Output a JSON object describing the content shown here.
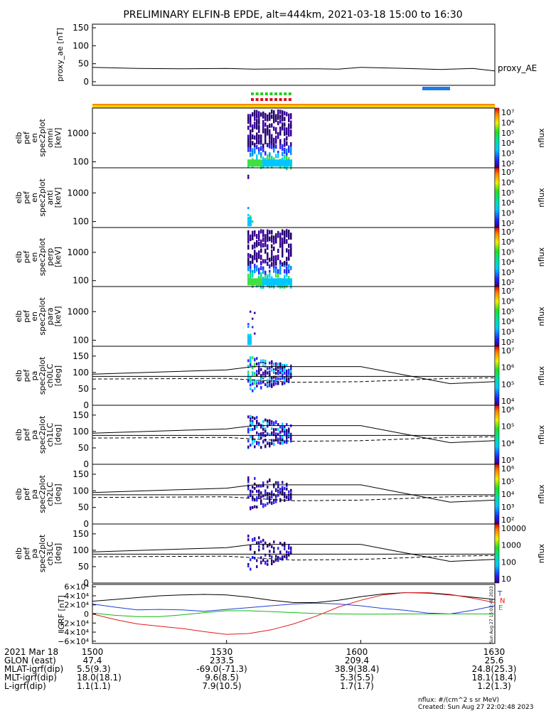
{
  "title": "PRELIMINARY ELFIN-B EPDE, alt=444km, 2021-03-18 15:00 to 16:30",
  "colors": {
    "line": "#000000",
    "bar_blue": "#1e7be6",
    "bar_yellow": "#f5d100",
    "bar_orange": "#f58a00",
    "dot_green": "#22cc22",
    "dot_red": "#dd1111",
    "bx": "#e41a1c",
    "by": "#1f3fd6",
    "bz": "#11bb11",
    "btot": "#000000"
  },
  "chart_data": [
    {
      "type": "line",
      "name": "proxy_ae",
      "ylabel": "proxy_ae [nT]",
      "legend": "proxy_AE",
      "ylim": [
        -10,
        160
      ],
      "yticks": [
        "150",
        "100",
        "50",
        "0"
      ],
      "x": [
        1500,
        1510,
        1520,
        1530,
        1536,
        1550,
        1555,
        1600,
        1610,
        1618,
        1625,
        1630
      ],
      "values": [
        40,
        37,
        36,
        37,
        35,
        36,
        35,
        40,
        37,
        34,
        37,
        30
      ]
    },
    {
      "type": "heatmap",
      "name": "en_spec2plot_omni",
      "ylabel": "elb pef en spec2plot omni [keV]",
      "yticks": [
        "1000",
        "100"
      ],
      "colorbar_label": "nflux",
      "colorbar_ticks": [
        "10⁷",
        "10⁶",
        "10⁵",
        "10⁴",
        "10³",
        "10²"
      ]
    },
    {
      "type": "heatmap",
      "name": "en_spec2plot_anti",
      "ylabel": "elb pef en spec2plot anti [keV]",
      "yticks": [
        "1000",
        "100"
      ],
      "colorbar_label": "nflux",
      "colorbar_ticks": [
        "10⁷",
        "10⁶",
        "10⁵",
        "10⁴",
        "10³",
        "10²"
      ]
    },
    {
      "type": "heatmap",
      "name": "en_spec2plot_perp",
      "ylabel": "elb pef en spec2plot perp [keV]",
      "yticks": [
        "1000",
        "100"
      ],
      "colorbar_label": "nflux",
      "colorbar_ticks": [
        "10⁷",
        "10⁶",
        "10⁵",
        "10⁴",
        "10³",
        "10²"
      ]
    },
    {
      "type": "heatmap",
      "name": "en_spec2plot_para",
      "ylabel": "elb pef en spec2plot para [keV]",
      "yticks": [
        "1000",
        "100"
      ],
      "colorbar_label": "nflux",
      "colorbar_ticks": [
        "10⁷",
        "10⁶",
        "10⁵",
        "10⁴",
        "10³",
        "10²"
      ]
    },
    {
      "type": "heatmap",
      "name": "pa_spec2plot_ch0LC",
      "ylabel": "elb pef pa spec2plot ch0LC [deg]",
      "yticks": [
        "150",
        "100",
        "50",
        "0"
      ],
      "ylim": [
        0,
        180
      ],
      "colorbar_label": "nflux",
      "colorbar_ticks": [
        "10⁷",
        "10⁶",
        "10⁵",
        "10⁴"
      ]
    },
    {
      "type": "heatmap",
      "name": "pa_spec2plot_ch1LC",
      "ylabel": "elb pef pa spec2plot ch1LC [deg]",
      "yticks": [
        "150",
        "100",
        "50",
        "0"
      ],
      "ylim": [
        0,
        180
      ],
      "colorbar_label": "nflux",
      "colorbar_ticks": [
        "10⁶",
        "10⁵",
        "10⁴",
        "10³"
      ]
    },
    {
      "type": "heatmap",
      "name": "pa_spec2plot_ch2LC",
      "ylabel": "elb pef pa spec2plot ch2LC [deg]",
      "yticks": [
        "150",
        "100",
        "50",
        "0"
      ],
      "ylim": [
        0,
        180
      ],
      "colorbar_label": "nflux",
      "colorbar_ticks": [
        "10⁶",
        "10⁵",
        "10⁴",
        "10³",
        "10²"
      ]
    },
    {
      "type": "heatmap",
      "name": "pa_spec2plot_ch3LC",
      "ylabel": "elb pef pa spec2plot ch3LC [deg]",
      "yticks": [
        "150",
        "100",
        "50",
        "0"
      ],
      "ylim": [
        0,
        180
      ],
      "colorbar_label": "nflux",
      "colorbar_ticks": [
        "10000",
        "1000",
        "100",
        "10"
      ]
    },
    {
      "type": "line",
      "name": "igrf",
      "ylabel": "IGRF [nT]",
      "ylim": [
        -65000.0,
        65000.0
      ],
      "yticks": [
        "6×10⁴",
        "4×10⁴",
        "2×10⁴",
        "0",
        "−2×10⁴",
        "−4×10⁴",
        "−6×10⁴"
      ],
      "x": [
        1500,
        1505,
        1510,
        1515,
        1520,
        1525,
        1530,
        1535,
        1540,
        1545,
        1550,
        1555,
        1600,
        1605,
        1610,
        1615,
        1620,
        1625,
        1630
      ],
      "series": [
        {
          "name": "B_tot",
          "values": [
            28000,
            32000,
            36000,
            40000,
            42000,
            43000,
            42000,
            37000,
            30000,
            25000,
            25000,
            30000,
            38000,
            44000,
            47000,
            46000,
            42000,
            37000,
            32000
          ]
        },
        {
          "name": "B_x",
          "values": [
            0,
            -12000,
            -22000,
            -27000,
            -32000,
            -39000,
            -45000,
            -43000,
            -35000,
            -22000,
            -5000,
            15000,
            30000,
            42000,
            47000,
            47000,
            43000,
            35000,
            25000
          ]
        },
        {
          "name": "B_y",
          "values": [
            22000,
            15000,
            9000,
            10000,
            9000,
            6000,
            10000,
            14000,
            18000,
            22000,
            24000,
            22000,
            18000,
            12000,
            8000,
            2000,
            0,
            8000,
            18000
          ]
        },
        {
          "name": "B_z",
          "values": [
            2000,
            -3000,
            -6000,
            -6000,
            -2000,
            3000,
            7000,
            7000,
            5000,
            3000,
            1000,
            0,
            -500,
            -500,
            0,
            0,
            0,
            0,
            0
          ]
        }
      ],
      "legend": [
        "T",
        "N",
        "E"
      ]
    }
  ],
  "xaxis": {
    "ticks": [
      "1500",
      "1530",
      "1600",
      "1630"
    ]
  },
  "footer": {
    "row_labels": [
      "2021 Mar 18",
      "GLON (east)",
      "MLAT-igrf(dip)",
      "MLT-igrf(dip)",
      "L-igrf(dip)"
    ],
    "columns": [
      {
        "time": "1500",
        "glon": "47.4",
        "mlat": "5.5(9.3)",
        "mlt": "18.0(18.1)",
        "l": "1.1(1.1)"
      },
      {
        "time": "1530",
        "glon": "233.5",
        "mlat": "-69.0(-71.3)",
        "mlt": "9.6(8.5)",
        "l": "7.9(10.5)"
      },
      {
        "time": "1600",
        "glon": "209.4",
        "mlat": "38.9(38.4)",
        "mlt": "5.3(5.5)",
        "l": "1.7(1.7)"
      },
      {
        "time": "1630",
        "glon": "25.6",
        "mlat": "24.8(25.3)",
        "mlt": "18.1(18.4)",
        "l": "1.2(1.3)"
      }
    ],
    "units_note": "nflux: #/(cm^2 s sr MeV)",
    "created": "Created: Sun Aug 27 22:02:48 2023",
    "side_stamp": "Sun Aug 27 15:02:48 2023"
  }
}
